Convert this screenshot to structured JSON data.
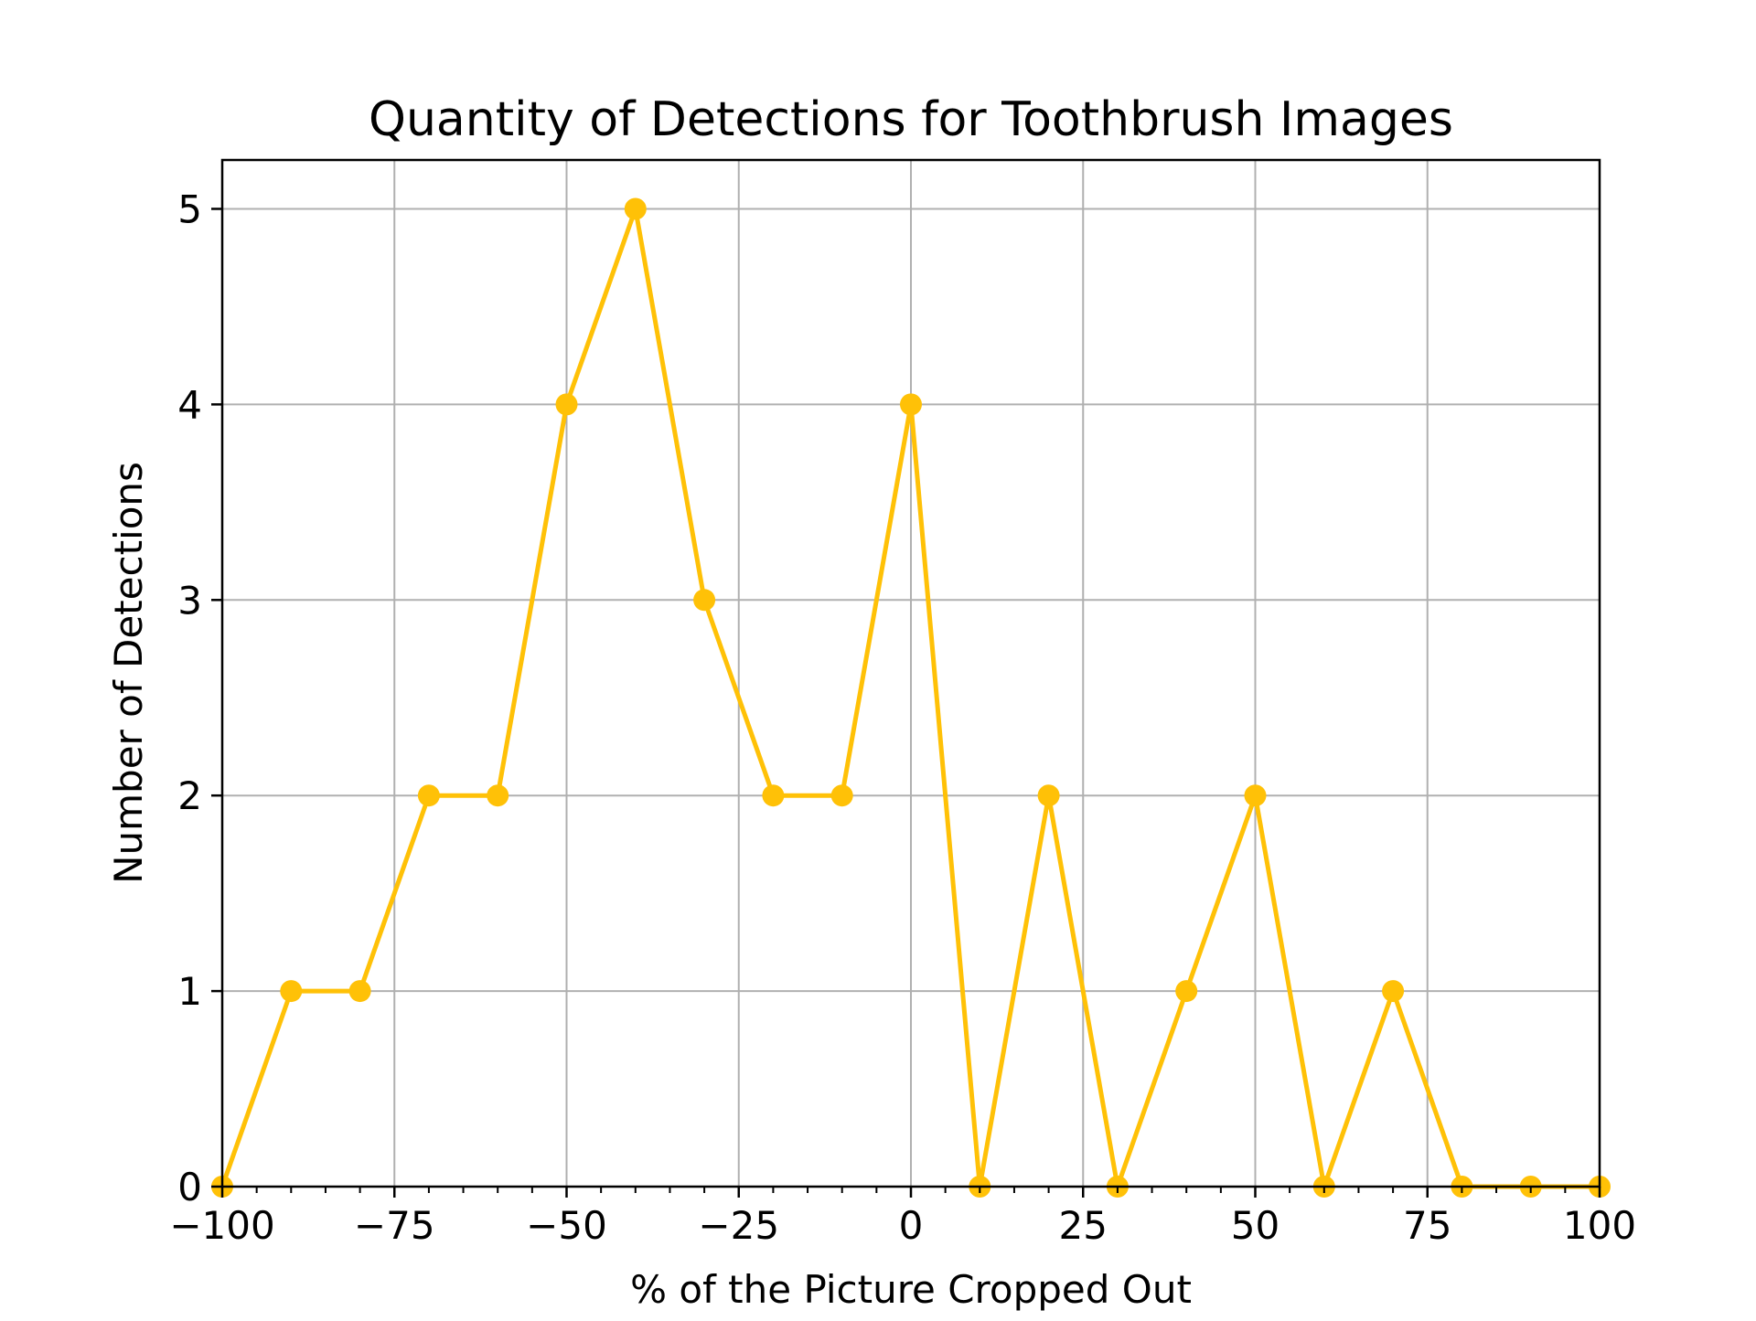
{
  "chart_data": {
    "type": "line",
    "title": "Quantity of Detections for Toothbrush Images",
    "xlabel": "% of the Picture Cropped Out",
    "ylabel": "Number of Detections",
    "xlim": [
      -100,
      100
    ],
    "ylim": [
      0,
      5.25
    ],
    "x_ticks": [
      -100,
      -75,
      -50,
      -25,
      0,
      25,
      50,
      75,
      100
    ],
    "x_tick_labels": [
      "−100",
      "−75",
      "−50",
      "−25",
      "0",
      "25",
      "50",
      "75",
      "100"
    ],
    "y_ticks": [
      0,
      1,
      2,
      3,
      4,
      5
    ],
    "y_tick_labels": [
      "0",
      "1",
      "2",
      "3",
      "4",
      "5"
    ],
    "grid": true,
    "series": [
      {
        "color": "#FFC107",
        "marker": "circle",
        "x": [
          -100,
          -90,
          -80,
          -70,
          -60,
          -50,
          -40,
          -30,
          -20,
          -10,
          0,
          10,
          20,
          30,
          40,
          50,
          60,
          70,
          80,
          90,
          100
        ],
        "y": [
          0,
          1,
          1,
          2,
          2,
          4,
          5,
          3,
          2,
          2,
          4,
          0,
          2,
          0,
          1,
          2,
          0,
          1,
          0,
          0,
          0
        ]
      }
    ]
  }
}
